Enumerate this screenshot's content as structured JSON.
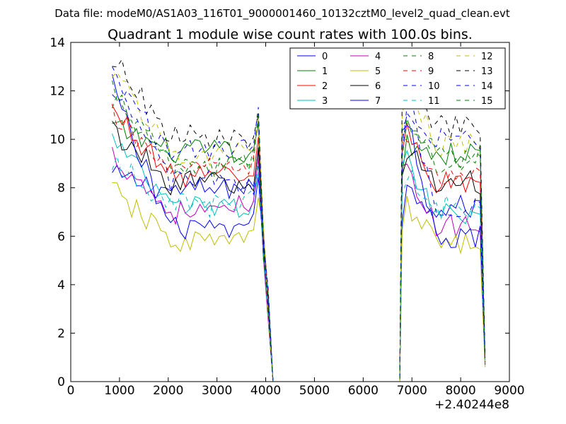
{
  "chart_data": {
    "type": "line",
    "suptitle": "Data file: modeM0/AS1A03_116T01_9000001460_10132cztM0_level2_quad_clean.evt",
    "title": "Quadrant 1 module wise count rates with 100.0s bins.",
    "xlabel": "",
    "ylabel": "",
    "offset_label": "+2.40244e8",
    "xlim": [
      0,
      9000
    ],
    "ylim": [
      0,
      14
    ],
    "xticks": [
      0,
      1000,
      2000,
      3000,
      4000,
      5000,
      6000,
      7000,
      8000,
      9000
    ],
    "yticks": [
      0,
      2,
      4,
      6,
      8,
      10,
      12,
      14
    ],
    "legend_location": "top-right",
    "legend_columns": 4,
    "segments": [
      {
        "x_start": 850,
        "step": 100,
        "count": 33
      },
      {
        "x_start": 4150,
        "step": 100,
        "count": 27
      },
      {
        "x_start": 6800,
        "step": 100,
        "count": 18
      }
    ],
    "series": [
      {
        "name": "0",
        "color": "#0000ff",
        "dashed": false,
        "start": 8.5,
        "level": 7.9,
        "end": 8.2,
        "mid_end": 7.2,
        "last": 0.9
      },
      {
        "name": "1",
        "color": "#008000",
        "dashed": false,
        "start": 10.5,
        "level": 9.5,
        "end": 9.2,
        "mid_end": 9.4,
        "last": 0.8
      },
      {
        "name": "2",
        "color": "#ff0000",
        "dashed": false,
        "start": 11.2,
        "level": 8.5,
        "end": 8.6,
        "mid_end": 8.2,
        "last": 0.7
      },
      {
        "name": "3",
        "color": "#00bfbf",
        "dashed": false,
        "start": 10.0,
        "level": 7.2,
        "end": 7.1,
        "mid_end": 7.0,
        "last": 0.7
      },
      {
        "name": "4",
        "color": "#bf00bf",
        "dashed": false,
        "start": 9.4,
        "level": 7.0,
        "end": 7.6,
        "mid_end": 6.4,
        "last": 0.7
      },
      {
        "name": "5",
        "color": "#bfbf00",
        "dashed": false,
        "start": 7.9,
        "level": 5.8,
        "end": 5.9,
        "mid_end": 5.8,
        "last": 0.6
      },
      {
        "name": "6",
        "color": "#000000",
        "dashed": false,
        "start": 10.4,
        "level": 8.2,
        "end": 7.9,
        "mid_end": 8.2,
        "last": 0.8
      },
      {
        "name": "7",
        "color": "#0000ff",
        "dashed": false,
        "start": 12.3,
        "level": 6.3,
        "end": 6.6,
        "mid_end": 6.0,
        "last": 0.9
      },
      {
        "name": "8",
        "color": "#008000",
        "dashed": true,
        "start": 12.0,
        "level": 8.8,
        "end": 9.2,
        "mid_end": 9.0,
        "last": 0.8
      },
      {
        "name": "9",
        "color": "#ff0000",
        "dashed": true,
        "start": 11.0,
        "level": 8.8,
        "end": 8.9,
        "mid_end": 8.5,
        "last": 0.7
      },
      {
        "name": "10",
        "color": "#0000ff",
        "dashed": true,
        "start": 12.5,
        "level": 8.3,
        "end": 7.7,
        "mid_end": 7.3,
        "last": 0.9
      },
      {
        "name": "11",
        "color": "#00bfbf",
        "dashed": true,
        "start": 9.2,
        "level": 7.3,
        "end": 7.6,
        "mid_end": 7.2,
        "last": 0.7
      },
      {
        "name": "12",
        "color": "#bfbf00",
        "dashed": true,
        "start": 13.0,
        "level": 9.4,
        "end": 9.5,
        "mid_end": 9.8,
        "last": 0.8
      },
      {
        "name": "13",
        "color": "#000000",
        "dashed": true,
        "start": 13.4,
        "level": 10.1,
        "end": 9.6,
        "mid_end": 10.5,
        "last": 1.0
      },
      {
        "name": "14",
        "color": "#0000ff",
        "dashed": true,
        "start": 12.2,
        "level": 9.6,
        "end": 9.8,
        "mid_end": 10.0,
        "last": 0.9
      },
      {
        "name": "15",
        "color": "#008000",
        "dashed": true,
        "start": 11.6,
        "level": 8.9,
        "end": 9.2,
        "mid_end": 9.3,
        "last": 0.8
      }
    ]
  }
}
